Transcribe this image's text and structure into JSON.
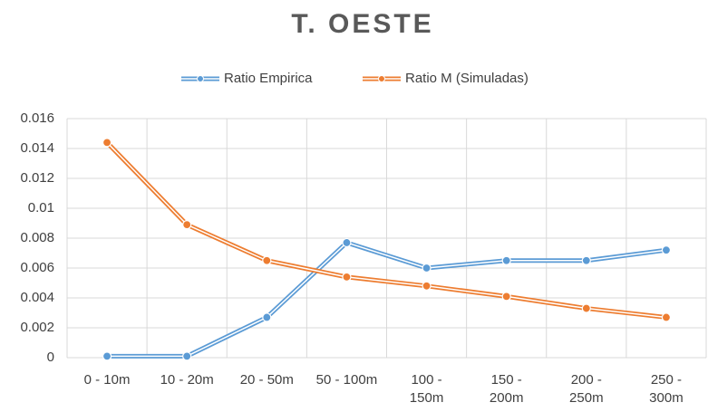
{
  "chart_data": {
    "type": "line",
    "title": "T. OESTE",
    "categories": [
      "0 - 10m",
      "10 - 20m",
      "20 - 50m",
      "50 - 100m",
      "100 - 150m",
      "150 - 200m",
      "200 - 250m",
      "250 - 300m"
    ],
    "series": [
      {
        "name": "Ratio Empirica",
        "color": "#5b9bd5",
        "values": [
          0.0001,
          0.0001,
          0.0027,
          0.0077,
          0.006,
          0.0065,
          0.0065,
          0.0072
        ]
      },
      {
        "name": "Ratio M (Simuladas)",
        "color": "#ed7d31",
        "values": [
          0.0144,
          0.0089,
          0.0065,
          0.0054,
          0.0048,
          0.0041,
          0.0033,
          0.0027
        ]
      }
    ],
    "ylim": [
      0,
      0.016
    ],
    "yticks": [
      0,
      0.002,
      0.004,
      0.006,
      0.008,
      0.01,
      0.012,
      0.014,
      0.016
    ],
    "grid": true,
    "legend": "top"
  }
}
